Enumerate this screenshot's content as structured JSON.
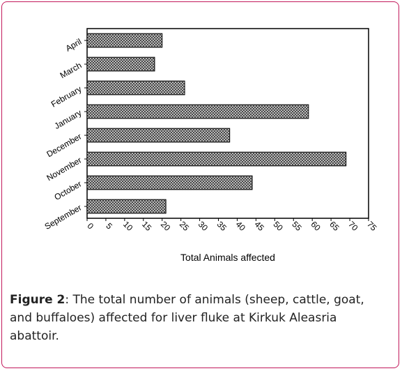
{
  "chart_data": {
    "type": "bar",
    "orientation": "horizontal",
    "categories": [
      "September",
      "October",
      "November",
      "December",
      "January",
      "February",
      "March",
      "April"
    ],
    "values": [
      21,
      44,
      69,
      38,
      59,
      26,
      18,
      20
    ],
    "xlabel": "Total Animals affected",
    "ylabel": "",
    "xlim": [
      0,
      75
    ],
    "xticks": [
      "0",
      "5",
      "10",
      "15",
      "20",
      "25",
      "30",
      "35",
      "40",
      "45",
      "50",
      "55",
      "60",
      "65",
      "70",
      "75"
    ],
    "grid": false,
    "legend": "none",
    "bar_pattern": "crosshatch"
  },
  "caption": {
    "label": "Figure 2",
    "text": ": The total number of animals (sheep, cattle, goat, and buffaloes) affected for liver fluke at Kirkuk Aleasria abattoir."
  },
  "colors": {
    "frame_border": "#c2185b",
    "axis": "#000000",
    "bar_fill": "#555555"
  }
}
